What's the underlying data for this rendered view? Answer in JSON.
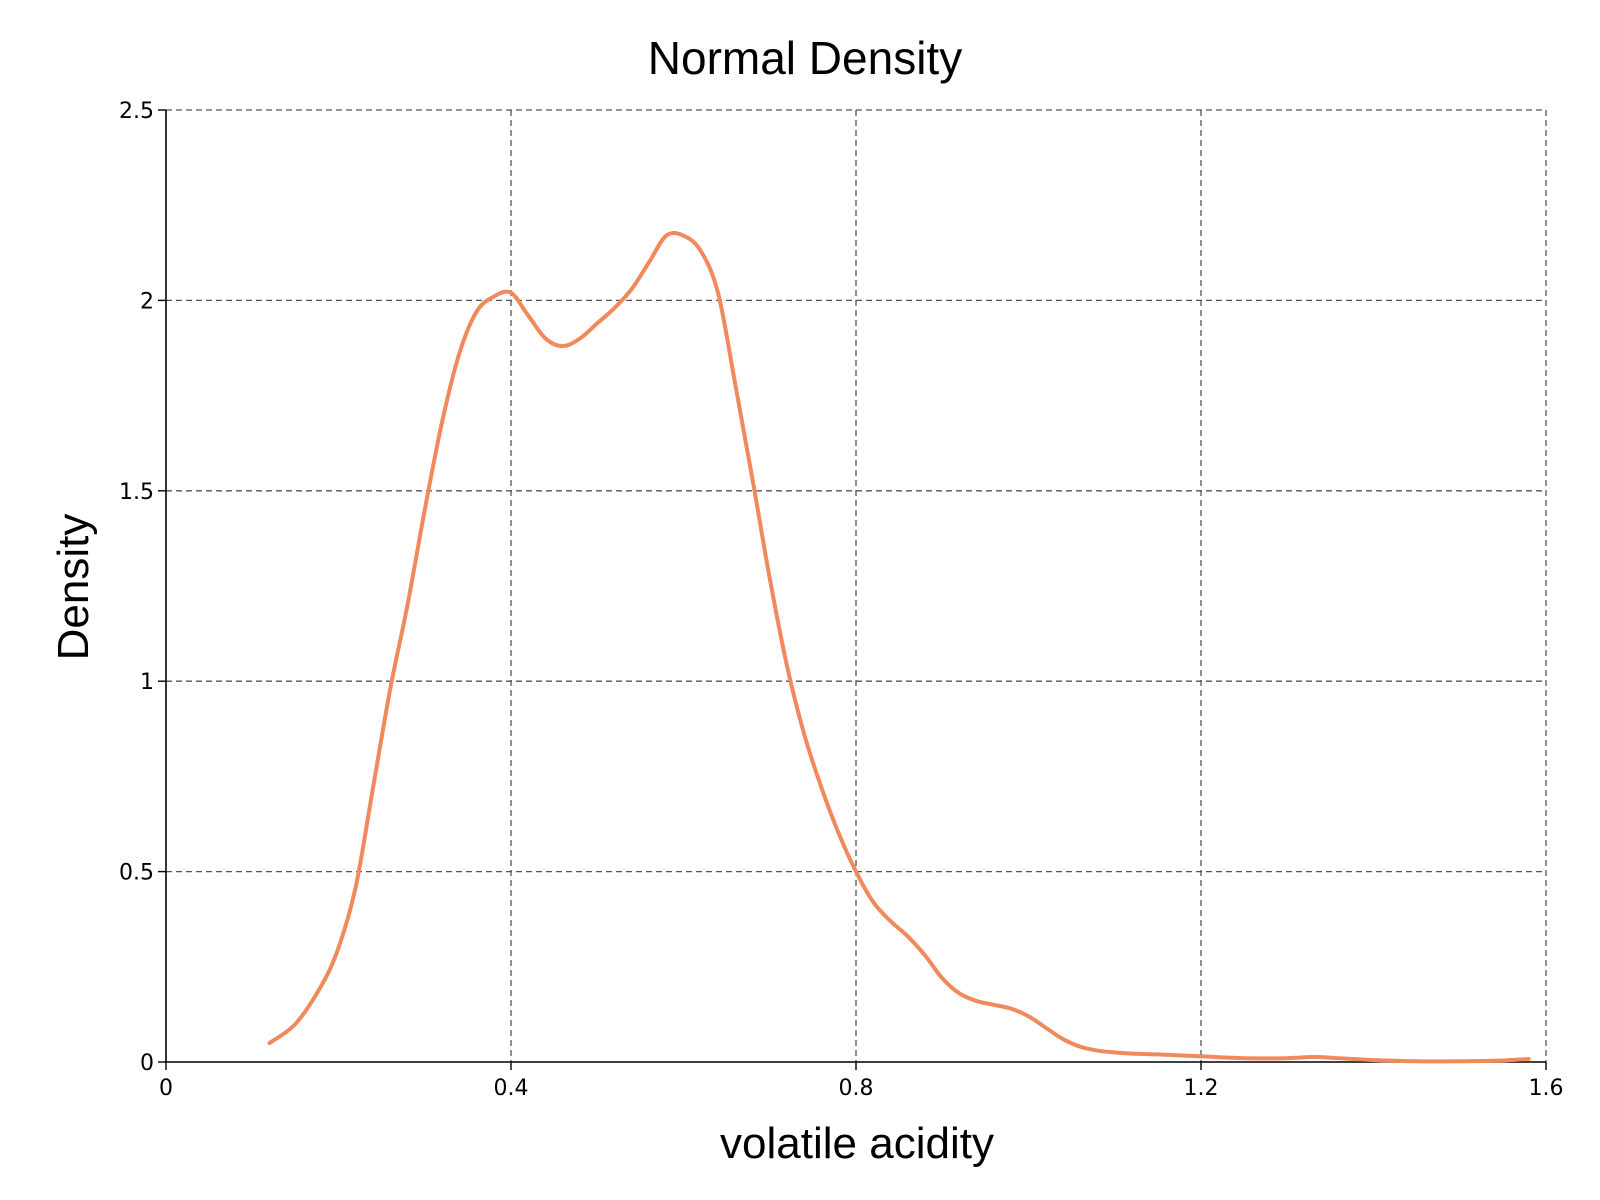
{
  "chart_data": {
    "type": "line",
    "title": "Normal Density",
    "xlabel": "volatile acidity",
    "ylabel": "Density",
    "xlim": [
      0,
      1.6
    ],
    "ylim": [
      0,
      2.5
    ],
    "x_ticks": [
      0,
      0.4,
      0.8,
      1.2,
      1.6
    ],
    "x_tick_labels": [
      "0",
      "0.4",
      "0.8",
      "1.2",
      "1.6"
    ],
    "y_ticks": [
      0,
      0.5,
      1,
      1.5,
      2,
      2.5
    ],
    "y_tick_labels": [
      "0",
      "0.5",
      "1",
      "1.5",
      "2",
      "2.5"
    ],
    "grid": true,
    "legend": "none",
    "line_color": "#f08a5d",
    "series": [
      {
        "x": [
          0.12,
          0.15,
          0.18,
          0.2,
          0.22,
          0.24,
          0.26,
          0.28,
          0.3,
          0.32,
          0.34,
          0.36,
          0.38,
          0.4,
          0.42,
          0.44,
          0.46,
          0.48,
          0.5,
          0.52,
          0.54,
          0.56,
          0.58,
          0.6,
          0.62,
          0.64,
          0.66,
          0.68,
          0.7,
          0.72,
          0.74,
          0.76,
          0.78,
          0.8,
          0.82,
          0.84,
          0.86,
          0.88,
          0.9,
          0.92,
          0.94,
          0.96,
          0.98,
          1.0,
          1.02,
          1.04,
          1.06,
          1.08,
          1.1,
          1.12,
          1.15,
          1.2,
          1.25,
          1.3,
          1.33,
          1.36,
          1.4,
          1.45,
          1.5,
          1.55,
          1.58
        ],
        "y": [
          0.05,
          0.1,
          0.2,
          0.3,
          0.46,
          0.72,
          0.98,
          1.2,
          1.45,
          1.68,
          1.86,
          1.97,
          2.01,
          2.02,
          1.96,
          1.9,
          1.88,
          1.9,
          1.94,
          1.98,
          2.03,
          2.1,
          2.17,
          2.17,
          2.13,
          2.02,
          1.78,
          1.53,
          1.27,
          1.04,
          0.86,
          0.72,
          0.6,
          0.5,
          0.42,
          0.37,
          0.33,
          0.28,
          0.22,
          0.18,
          0.16,
          0.15,
          0.14,
          0.12,
          0.09,
          0.06,
          0.04,
          0.03,
          0.025,
          0.022,
          0.02,
          0.015,
          0.01,
          0.01,
          0.013,
          0.01,
          0.005,
          0.002,
          0.002,
          0.004,
          0.008
        ]
      }
    ]
  }
}
